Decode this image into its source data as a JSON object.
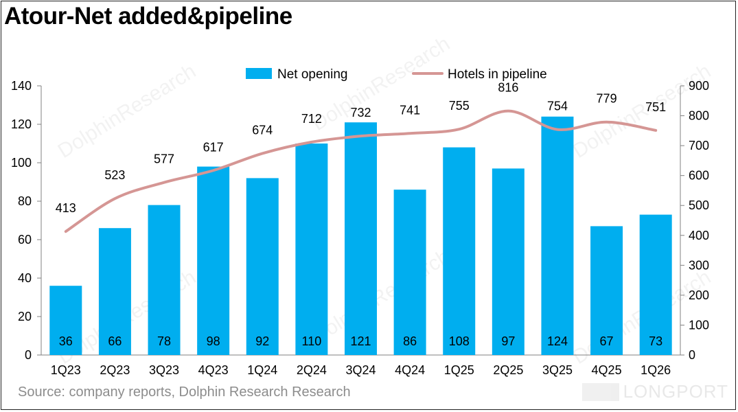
{
  "title": "Atour-Net added&pipeline",
  "source": "Source: company reports, Dolphin Research Research",
  "watermark": "DolphinResearch",
  "brand": "LONGPORT",
  "colors": {
    "bar": "#00aeef",
    "line": "#d59694",
    "axis": "#808080",
    "text": "#000000",
    "source_text": "#8c8c8c"
  },
  "chart_data": {
    "type": "bar",
    "categories": [
      "1Q23",
      "2Q23",
      "3Q23",
      "4Q23",
      "1Q24",
      "2Q24",
      "3Q24",
      "4Q24",
      "1Q25",
      "2Q25",
      "3Q25",
      "4Q25",
      "1Q26"
    ],
    "series": [
      {
        "name": "Net opening",
        "type": "bar",
        "axis": "left",
        "values": [
          36,
          66,
          78,
          98,
          92,
          110,
          121,
          86,
          108,
          97,
          124,
          67,
          73
        ]
      },
      {
        "name": "Hotels in pipeline",
        "type": "line",
        "axis": "right",
        "values": [
          413,
          523,
          577,
          617,
          674,
          712,
          732,
          741,
          755,
          816,
          754,
          779,
          751
        ]
      }
    ],
    "y_left": {
      "min": 0,
      "max": 140,
      "step": 20,
      "ticks": [
        "0",
        "20",
        "40",
        "60",
        "80",
        "100",
        "120",
        "140"
      ]
    },
    "y_right": {
      "min": 0,
      "max": 900,
      "step": 100,
      "ticks": [
        "0",
        "100",
        "200",
        "300",
        "400",
        "500",
        "600",
        "700",
        "800",
        "900"
      ]
    },
    "legend_position": "top-center",
    "grid": false
  }
}
